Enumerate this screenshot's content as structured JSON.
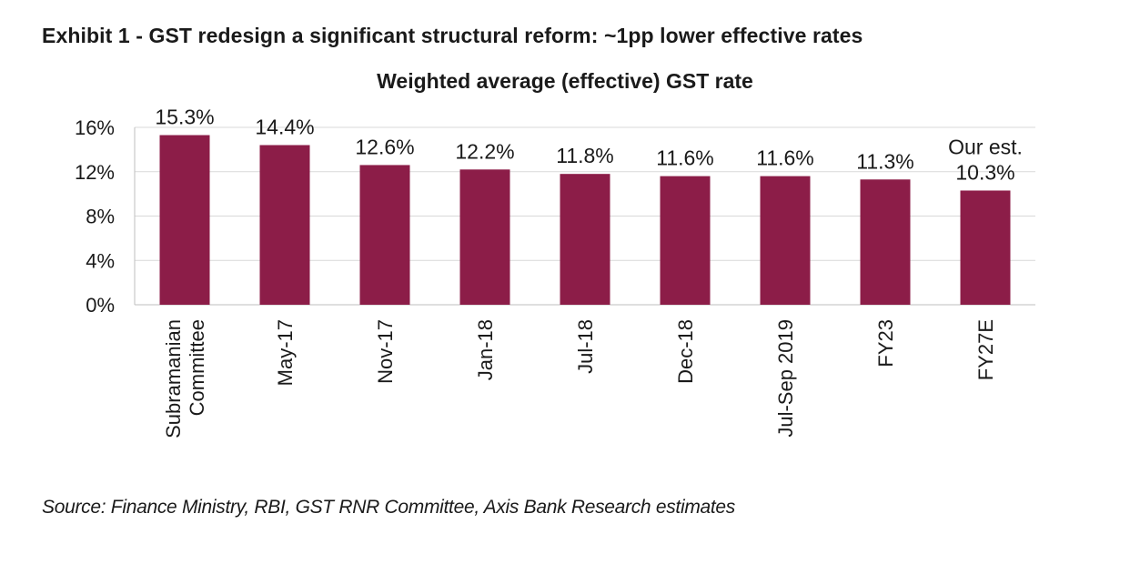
{
  "exhibit_title": "Exhibit 1 - GST redesign a significant structural reform: ~1pp lower effective rates",
  "source": "Source: Finance Ministry, RBI, GST RNR Committee, Axis Bank Research estimates",
  "colors": {
    "bar": "#8c1d48",
    "grid": "#d9d9d9",
    "axis": "#bfbfbf"
  },
  "chart_data": {
    "type": "bar",
    "title": "Weighted average (effective) GST rate",
    "xlabel": "",
    "ylabel": "",
    "categories": [
      [
        "Subramanian",
        "Committee"
      ],
      [
        "May-17"
      ],
      [
        "Nov-17"
      ],
      [
        "Jan-18"
      ],
      [
        "Jul-18"
      ],
      [
        "Dec-18"
      ],
      [
        "Jul-Sep 2019"
      ],
      [
        "FY23"
      ],
      [
        "FY27E"
      ]
    ],
    "values": [
      15.3,
      14.4,
      12.6,
      12.2,
      11.8,
      11.6,
      11.6,
      11.3,
      10.3
    ],
    "data_labels": [
      [
        "15.3%"
      ],
      [
        "14.4%"
      ],
      [
        "12.6%"
      ],
      [
        "12.2%"
      ],
      [
        "11.8%"
      ],
      [
        "11.6%"
      ],
      [
        "11.6%"
      ],
      [
        "11.3%"
      ],
      [
        "Our est.",
        "10.3%"
      ]
    ],
    "yticks": [
      0,
      4,
      8,
      12,
      16
    ],
    "ytick_labels": [
      "0%",
      "4%",
      "8%",
      "12%",
      "16%"
    ],
    "ylim": [
      0,
      16
    ],
    "grid": true,
    "legend": "none"
  }
}
